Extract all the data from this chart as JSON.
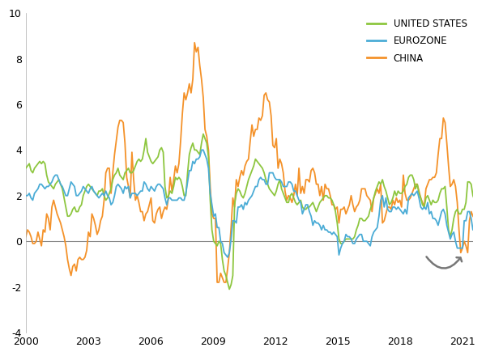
{
  "ylabel": "",
  "xlabel": "",
  "xlim": [
    2000,
    2021.5
  ],
  "ylim": [
    -4,
    10
  ],
  "yticks": [
    -4,
    -2,
    0,
    2,
    4,
    6,
    8,
    10
  ],
  "xticks": [
    2000,
    2003,
    2006,
    2009,
    2012,
    2015,
    2018,
    2021
  ],
  "us_color": "#8DC63F",
  "ez_color": "#4BACD6",
  "cn_color": "#F4922A",
  "legend_labels": [
    "UNITED STATES",
    "EUROZONE",
    "CHINA"
  ],
  "linewidth": 1.3,
  "bg_color": "#FFFFFF",
  "us_data": [
    3.2,
    3.3,
    3.4,
    3.1,
    3.0,
    3.2,
    3.3,
    3.4,
    3.5,
    3.4,
    3.5,
    3.4,
    2.9,
    2.6,
    2.5,
    2.4,
    2.3,
    2.5,
    2.6,
    2.7,
    2.5,
    2.3,
    1.9,
    1.5,
    1.1,
    1.1,
    1.2,
    1.4,
    1.5,
    1.3,
    1.3,
    1.5,
    1.6,
    2.0,
    2.2,
    2.4,
    2.5,
    2.4,
    2.3,
    2.2,
    2.1,
    2.0,
    2.2,
    2.2,
    2.3,
    2.0,
    1.8,
    1.9,
    2.1,
    2.3,
    2.7,
    2.9,
    3.0,
    3.2,
    2.9,
    2.8,
    2.7,
    3.0,
    3.1,
    3.2,
    3.0,
    3.0,
    3.1,
    3.3,
    3.5,
    3.6,
    3.5,
    3.6,
    4.0,
    4.5,
    3.9,
    3.7,
    3.5,
    3.4,
    3.5,
    3.6,
    3.7,
    4.0,
    4.1,
    3.9,
    2.4,
    1.9,
    2.0,
    2.2,
    2.1,
    2.4,
    2.8,
    2.7,
    2.8,
    2.7,
    2.4,
    2.0,
    2.0,
    3.0,
    3.8,
    4.1,
    4.3,
    4.0,
    4.0,
    3.9,
    3.8,
    4.3,
    4.7,
    4.5,
    4.3,
    3.7,
    1.8,
    0.5,
    0.0,
    -0.1,
    -0.2,
    0.0,
    -0.1,
    -0.8,
    -1.3,
    -1.5,
    -1.8,
    -2.1,
    -1.9,
    -1.5,
    1.6,
    2.1,
    2.3,
    2.2,
    2.0,
    1.9,
    2.1,
    2.4,
    2.7,
    2.9,
    3.1,
    3.3,
    3.6,
    3.5,
    3.4,
    3.3,
    3.2,
    3.0,
    2.7,
    2.5,
    2.3,
    2.2,
    2.1,
    2.0,
    2.2,
    2.5,
    2.7,
    2.3,
    2.1,
    1.9,
    1.7,
    1.7,
    2.0,
    2.1,
    1.9,
    1.7,
    1.6,
    1.7,
    1.8,
    1.5,
    1.4,
    1.4,
    1.5,
    1.5,
    1.6,
    1.7,
    1.5,
    1.3,
    1.5,
    1.7,
    1.8,
    1.9,
    2.0,
    2.0,
    1.9,
    1.9,
    1.8,
    1.6,
    1.3,
    0.8,
    0.1,
    -0.1,
    -0.1,
    0.0,
    0.1,
    0.1,
    0.1,
    0.1,
    0.1,
    0.2,
    0.5,
    0.7,
    1.0,
    1.0,
    0.9,
    0.9,
    1.0,
    1.1,
    1.4,
    1.6,
    1.9,
    2.2,
    2.4,
    2.6,
    2.5,
    2.7,
    2.4,
    2.2,
    1.9,
    1.6,
    1.7,
    1.9,
    2.2,
    2.0,
    2.2,
    2.1,
    2.1,
    2.2,
    2.4,
    2.5,
    2.8,
    2.9,
    2.9,
    2.7,
    2.3,
    2.5,
    2.1,
    1.9,
    1.6,
    1.5,
    1.9,
    2.0,
    1.8,
    1.6,
    1.8,
    1.7,
    1.7,
    1.8,
    2.1,
    2.3,
    2.3,
    2.4,
    1.5,
    0.5,
    0.2,
    0.5,
    1.0,
    1.3,
    1.4,
    1.2,
    1.2,
    1.4,
    1.4,
    1.7,
    2.6,
    2.6,
    2.5,
    2.0,
    1.8,
    1.5,
    1.3,
    1.2,
    1.2,
    1.2
  ],
  "ez_data": [
    2.0,
    2.0,
    2.1,
    1.9,
    1.8,
    2.1,
    2.2,
    2.3,
    2.5,
    2.5,
    2.4,
    2.3,
    2.4,
    2.4,
    2.5,
    2.6,
    2.8,
    2.9,
    2.9,
    2.7,
    2.5,
    2.4,
    2.2,
    2.0,
    2.0,
    2.3,
    2.6,
    2.5,
    2.4,
    2.0,
    2.0,
    2.1,
    2.2,
    2.4,
    2.3,
    2.2,
    2.1,
    2.3,
    2.4,
    2.2,
    2.1,
    2.0,
    1.9,
    2.0,
    2.1,
    2.0,
    2.2,
    2.0,
    1.9,
    1.6,
    1.7,
    2.0,
    2.4,
    2.5,
    2.4,
    2.3,
    2.1,
    2.4,
    2.3,
    2.4,
    1.9,
    2.1,
    2.1,
    2.1,
    2.0,
    2.1,
    2.2,
    2.2,
    2.6,
    2.5,
    2.3,
    2.2,
    2.4,
    2.3,
    2.2,
    2.4,
    2.5,
    2.5,
    2.4,
    2.3,
    1.9,
    1.6,
    1.9,
    1.9,
    1.8,
    1.8,
    1.8,
    1.8,
    1.9,
    1.9,
    1.8,
    1.8,
    2.1,
    2.6,
    3.1,
    3.1,
    3.5,
    3.4,
    3.6,
    3.6,
    3.7,
    4.0,
    4.0,
    3.8,
    3.6,
    3.2,
    2.1,
    1.6,
    1.1,
    1.2,
    0.6,
    0.6,
    0.0,
    -0.1,
    -0.5,
    -0.6,
    -0.7,
    -0.5,
    0.1,
    0.9,
    0.9,
    0.8,
    1.5,
    1.5,
    1.6,
    1.4,
    1.7,
    1.6,
    1.8,
    1.9,
    2.0,
    2.2,
    2.4,
    2.4,
    2.7,
    2.8,
    2.7,
    2.7,
    2.5,
    2.5,
    3.0,
    3.0,
    3.0,
    2.8,
    2.7,
    2.7,
    2.7,
    2.6,
    2.4,
    2.4,
    2.4,
    2.6,
    2.6,
    2.5,
    2.2,
    2.2,
    2.0,
    1.8,
    1.7,
    1.2,
    1.4,
    1.6,
    1.6,
    1.3,
    1.1,
    0.7,
    0.9,
    0.8,
    0.8,
    0.7,
    0.5,
    0.7,
    0.5,
    0.5,
    0.4,
    0.4,
    0.3,
    0.4,
    0.3,
    0.2,
    -0.6,
    -0.3,
    -0.1,
    0.0,
    0.3,
    0.2,
    0.2,
    0.1,
    -0.1,
    -0.1,
    0.1,
    0.2,
    0.3,
    0.3,
    0.0,
    0.0,
    0.0,
    -0.1,
    -0.2,
    0.2,
    0.4,
    0.5,
    0.6,
    1.1,
    1.8,
    2.0,
    1.5,
    1.9,
    1.4,
    1.3,
    1.3,
    1.5,
    1.5,
    1.4,
    1.5,
    1.4,
    1.3,
    1.2,
    1.4,
    1.2,
    1.9,
    2.0,
    2.1,
    2.0,
    2.1,
    2.2,
    1.9,
    1.5,
    1.4,
    1.5,
    1.4,
    1.7,
    1.2,
    1.3,
    1.0,
    1.0,
    0.9,
    0.7,
    1.0,
    1.3,
    1.4,
    1.2,
    0.7,
    0.4,
    0.1,
    0.3,
    0.4,
    0.0,
    -0.3,
    -0.3,
    -0.3,
    -0.3,
    0.9,
    0.9,
    1.3,
    1.3,
    1.0,
    0.5,
    0.5,
    0.3,
    0.0,
    -0.3,
    -0.3,
    -0.3
  ],
  "cn_data": [
    0.2,
    0.5,
    0.4,
    0.2,
    -0.1,
    -0.1,
    0.0,
    0.4,
    0.1,
    -0.2,
    0.5,
    0.4,
    1.2,
    1.0,
    0.5,
    1.5,
    1.8,
    1.5,
    1.2,
    1.0,
    0.8,
    0.5,
    0.2,
    -0.2,
    -0.8,
    -1.2,
    -1.5,
    -1.1,
    -1.0,
    -1.3,
    -0.8,
    -0.7,
    -0.8,
    -0.8,
    -0.7,
    -0.4,
    0.4,
    0.2,
    1.2,
    1.0,
    0.7,
    0.3,
    0.5,
    0.9,
    1.1,
    1.8,
    3.0,
    3.2,
    3.2,
    2.1,
    3.0,
    3.8,
    4.4,
    5.0,
    5.3,
    5.3,
    5.2,
    4.3,
    2.8,
    2.4,
    1.9,
    3.9,
    2.7,
    1.8,
    2.0,
    1.7,
    1.3,
    1.3,
    0.9,
    1.2,
    1.3,
    1.6,
    1.9,
    0.9,
    0.8,
    1.2,
    1.4,
    1.5,
    1.0,
    1.3,
    1.5,
    1.4,
    1.9,
    2.8,
    2.2,
    2.7,
    3.3,
    3.0,
    3.4,
    4.4,
    5.6,
    6.5,
    6.2,
    6.5,
    6.9,
    6.5,
    7.1,
    8.7,
    8.3,
    8.5,
    7.7,
    7.1,
    6.3,
    4.9,
    4.6,
    4.0,
    2.4,
    1.2,
    1.0,
    1.0,
    -1.8,
    -1.8,
    -1.4,
    -1.6,
    -1.8,
    -1.8,
    -1.2,
    -0.5,
    0.6,
    1.9,
    1.5,
    2.7,
    2.4,
    2.8,
    3.1,
    2.9,
    3.3,
    3.5,
    3.6,
    4.4,
    5.1,
    4.6,
    4.9,
    4.9,
    5.4,
    5.3,
    5.5,
    6.4,
    6.5,
    6.2,
    6.1,
    5.5,
    4.2,
    4.1,
    4.5,
    3.2,
    3.6,
    3.4,
    3.0,
    2.2,
    1.8,
    2.0,
    1.9,
    1.7,
    2.0,
    2.5,
    2.0,
    3.2,
    2.1,
    2.4,
    2.1,
    2.7,
    2.7,
    2.6,
    3.1,
    3.2,
    3.0,
    2.5,
    2.5,
    2.0,
    2.4,
    1.8,
    2.5,
    2.3,
    2.3,
    2.0,
    1.6,
    1.6,
    1.4,
    1.5,
    0.8,
    1.4,
    1.4,
    1.5,
    1.2,
    1.4,
    1.6,
    2.0,
    1.6,
    1.3,
    1.5,
    1.6,
    1.8,
    2.3,
    2.3,
    2.3,
    2.0,
    1.9,
    1.8,
    1.3,
    1.9,
    2.1,
    2.3,
    2.1,
    2.5,
    0.8,
    0.9,
    1.2,
    1.5,
    1.5,
    1.4,
    1.8,
    1.6,
    1.9,
    1.7,
    1.8,
    1.5,
    2.9,
    2.1,
    1.8,
    1.8,
    1.9,
    2.1,
    2.3,
    2.5,
    2.5,
    2.2,
    1.9,
    1.7,
    1.5,
    2.3,
    2.5,
    2.7,
    2.7,
    2.8,
    2.8,
    3.0,
    3.8,
    4.5,
    4.5,
    5.4,
    5.2,
    4.3,
    3.3,
    2.4,
    2.5,
    2.7,
    2.4,
    1.7,
    0.5,
    -0.5,
    -0.3,
    0.0,
    -0.2,
    -0.5,
    0.9,
    1.3,
    1.1,
    1.0,
    0.8,
    0.7,
    1.5,
    2.3,
    2.5
  ]
}
